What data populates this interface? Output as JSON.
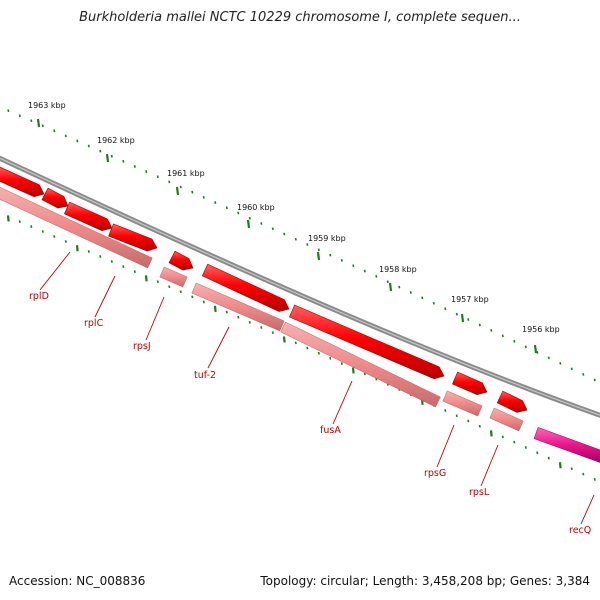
{
  "title": "Burkholderia mallei NCTC 10229 chromosome I, complete sequen...",
  "footer": {
    "accession_text": "Accession: NC_008836",
    "stats_text": "Topology: circular; Length: 3,458,208 bp; Genes: 3,384"
  },
  "colors": {
    "backbone": "#8a8a8a",
    "gene_forward": "#ee0000",
    "gene_secondary": "#ef8a8a",
    "gene_highlight": "#e8148a",
    "label": "#c00000",
    "tick": "#1e7a1e"
  },
  "ticks": [
    {
      "label": "1963 kbp"
    },
    {
      "label": "1962 kbp"
    },
    {
      "label": "1961 kbp"
    },
    {
      "label": "1960 kbp"
    },
    {
      "label": "1959 kbp"
    },
    {
      "label": "1958 kbp"
    },
    {
      "label": "1957 kbp"
    },
    {
      "label": "1956 kbp"
    }
  ],
  "genes": [
    {
      "name": "rplD"
    },
    {
      "name": "rplC"
    },
    {
      "name": "rpsJ"
    },
    {
      "name": "tuf-2"
    },
    {
      "name": "fusA"
    },
    {
      "name": "rpsG"
    },
    {
      "name": "rpsL"
    },
    {
      "name": "recQ"
    }
  ]
}
